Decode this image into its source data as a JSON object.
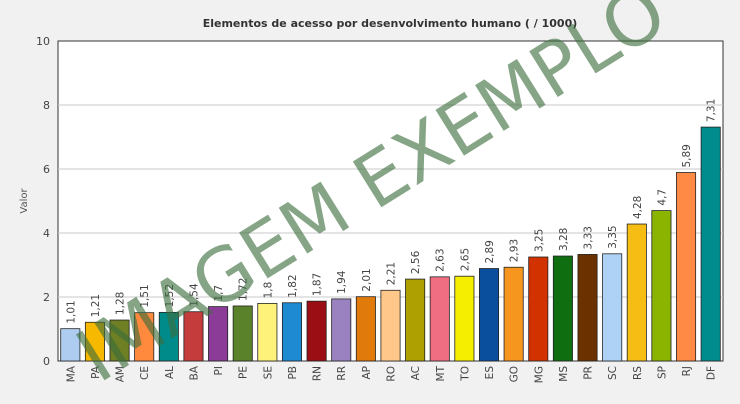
{
  "chart_data": {
    "type": "bar",
    "title": "Elementos de acesso por desenvolvimento humano ( / 1000)",
    "xlabel": "",
    "ylabel": "Valor",
    "ylim": [
      0,
      10
    ],
    "yticks": [
      0,
      2,
      4,
      6,
      8,
      10
    ],
    "grid": true,
    "legend": "none",
    "categories": [
      "MA",
      "PA",
      "AM",
      "CE",
      "AL",
      "BA",
      "PI",
      "PE",
      "SE",
      "PB",
      "RN",
      "RR",
      "AP",
      "RO",
      "AC",
      "MT",
      "TO",
      "ES",
      "GO",
      "MG",
      "MS",
      "PR",
      "SC",
      "RS",
      "SP",
      "RJ",
      "DF"
    ],
    "values": [
      1.01,
      1.21,
      1.28,
      1.51,
      1.52,
      1.54,
      1.7,
      1.72,
      1.8,
      1.82,
      1.87,
      1.94,
      2.01,
      2.21,
      2.56,
      2.63,
      2.65,
      2.89,
      2.93,
      3.25,
      3.28,
      3.33,
      3.35,
      4.28,
      4.7,
      5.89,
      7.31
    ],
    "value_labels": [
      "1,01",
      "1,21",
      "1,28",
      "1,51",
      "1,52",
      "1,54",
      "1,7",
      "1,72",
      "1,8",
      "1,82",
      "1,87",
      "1,94",
      "2,01",
      "2,21",
      "2,56",
      "2,63",
      "2,65",
      "2,89",
      "2,93",
      "3,25",
      "3,28",
      "3,33",
      "3,35",
      "4,28",
      "4,7",
      "5,89",
      "7,31"
    ],
    "colors": [
      "#aecbf0",
      "#f6b900",
      "#6e7f24",
      "#ff8a3d",
      "#008b8b",
      "#c43c3c",
      "#8a3c96",
      "#5a822a",
      "#fff27a",
      "#1e8ad2",
      "#9b0f14",
      "#9a82c0",
      "#e07a0a",
      "#ffc78a",
      "#aea000",
      "#f06e82",
      "#f6ee00",
      "#0a4f9e",
      "#f6961e",
      "#d23200",
      "#0f6e0f",
      "#6b3200",
      "#aed2f6",
      "#f6be14",
      "#8ab400",
      "#ff8a46",
      "#008c8c"
    ],
    "watermark": "IMAGEM EXEMPLO"
  }
}
